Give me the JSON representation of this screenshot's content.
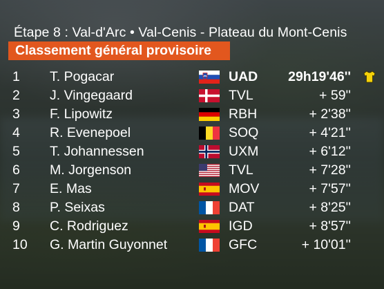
{
  "header": {
    "title": "Étape 8 : Val-d'Arc • Val-Cenis - Plateau du Mont-Cenis",
    "subtitle": "Classement général provisoire"
  },
  "standings": [
    {
      "rank": "1",
      "name": "T. Pogacar",
      "flag": "slovenia-flag-icon",
      "team": "UAD",
      "time": "29h19'46''",
      "jersey": "yellow-jersey-icon"
    },
    {
      "rank": "2",
      "name": "J. Vingegaard",
      "flag": "denmark-flag-icon",
      "team": "TVL",
      "time": "+ 59''"
    },
    {
      "rank": "3",
      "name": "F. Lipowitz",
      "flag": "germany-flag-icon",
      "team": "RBH",
      "time": "+ 2'38''"
    },
    {
      "rank": "4",
      "name": "R. Evenepoel",
      "flag": "belgium-flag-icon",
      "team": "SOQ",
      "time": "+ 4'21''"
    },
    {
      "rank": "5",
      "name": "T. Johannessen",
      "flag": "norway-flag-icon",
      "team": "UXM",
      "time": "+ 6'12''"
    },
    {
      "rank": "6",
      "name": "M. Jorgenson",
      "flag": "usa-flag-icon",
      "team": "TVL",
      "time": "+ 7'28''"
    },
    {
      "rank": "7",
      "name": "E. Mas",
      "flag": "spain-flag-icon",
      "team": "MOV",
      "time": "+ 7'57''"
    },
    {
      "rank": "8",
      "name": "P. Seixas",
      "flag": "france-flag-icon",
      "team": "DAT",
      "time": "+ 8'25''"
    },
    {
      "rank": "9",
      "name": "C. Rodriguez",
      "flag": "spain-flag-icon",
      "team": "IGD",
      "time": "+ 8'57''"
    },
    {
      "rank": "10",
      "name": "G. Martin Guyonnet",
      "flag": "france-flag-icon",
      "team": "GFC",
      "time": "+ 10'01''"
    }
  ],
  "colors": {
    "subtitle_bar": "#e2571e",
    "jersey": "#f5d20a"
  }
}
